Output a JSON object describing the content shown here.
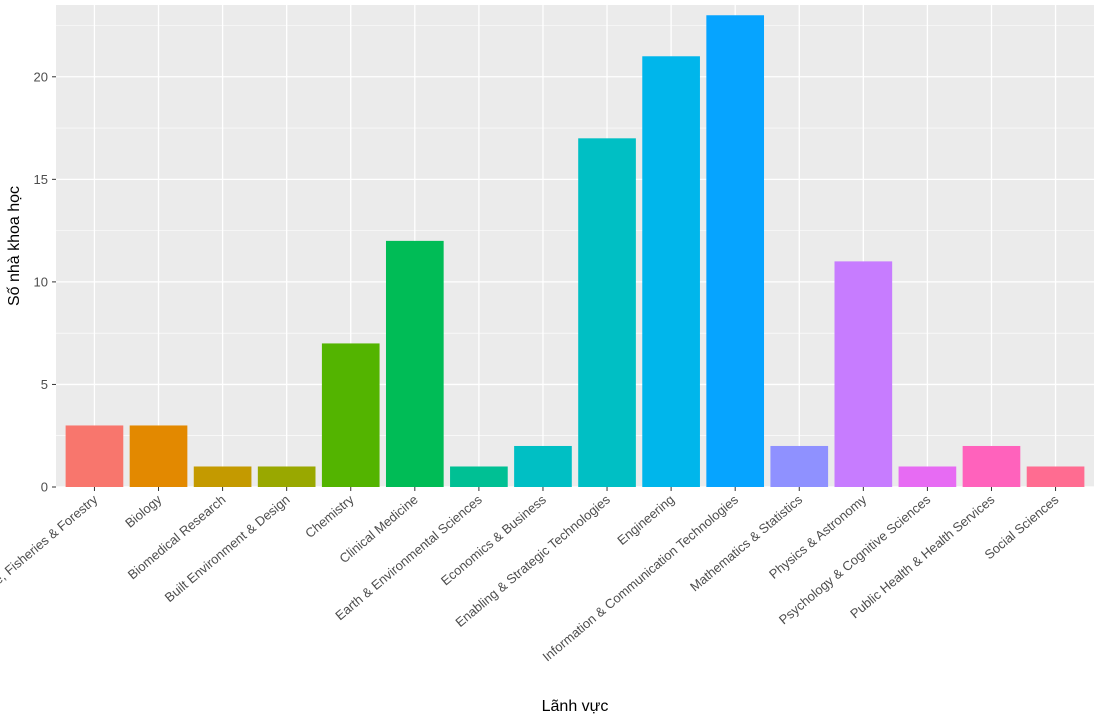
{
  "chart_data": {
    "type": "bar",
    "title": "",
    "xlabel": "Lãnh vực",
    "ylabel": "Số nhà khoa học",
    "ylim": [
      0,
      23.5
    ],
    "yticks": [
      0,
      5,
      10,
      15,
      20
    ],
    "grid": true,
    "legend": "none",
    "categories": [
      "Agriculture, Fisheries & Forestry",
      "Biology",
      "Biomedical Research",
      "Built Environment & Design",
      "Chemistry",
      "Clinical Medicine",
      "Earth & Environmental Sciences",
      "Economics & Business",
      "Enabling & Strategic Technologies",
      "Engineering",
      "Information & Communication Technologies",
      "Mathematics & Statistics",
      "Physics & Astronomy",
      "Psychology & Cognitive Sciences",
      "Public Health & Health Services",
      "Social Sciences"
    ],
    "values": [
      3,
      3,
      1,
      1,
      7,
      12,
      1,
      2,
      17,
      21,
      23,
      2,
      11,
      1,
      2,
      1
    ],
    "colors": [
      "#F8766D",
      "#E38900",
      "#C49A00",
      "#99A800",
      "#53B400",
      "#00BC56",
      "#00C094",
      "#00BFC4",
      "#00BFC4",
      "#00B6EB",
      "#06A4FF",
      "#8F91FF",
      "#C77CFF",
      "#E76BF3",
      "#FF62BC",
      "#FF6C91"
    ],
    "panel_bg": "#EBEBEB",
    "grid_color": "#FFFFFF"
  }
}
